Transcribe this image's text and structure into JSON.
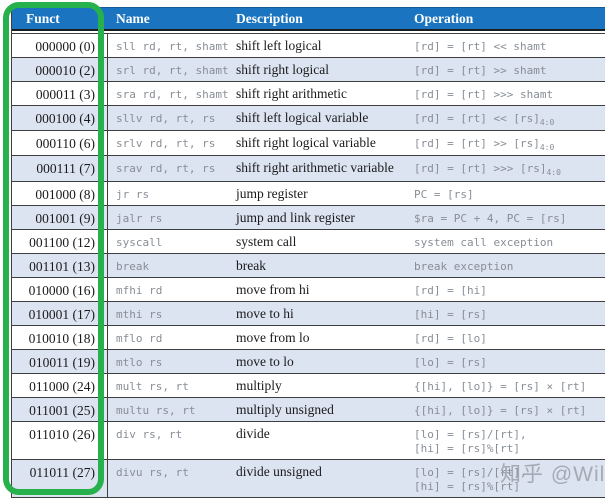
{
  "colors": {
    "header_bg": "#1a74bf",
    "alt_row_bg": "#dce3f1",
    "annotation_green": "#26b14c",
    "row_line": "#3e3e3e",
    "mono_text": "#888e96"
  },
  "annotation": {
    "shape": "green-rounded-rectangle",
    "purpose": "highlights the Funct column"
  },
  "watermark": {
    "text": "知乎 @Wil"
  },
  "table": {
    "columns": {
      "funct": "Funct",
      "name": "Name",
      "description": "Description",
      "operation": "Operation"
    },
    "rows": [
      {
        "funct": "000000 (0)",
        "name": "sll rd, rt, shamt",
        "description": "shift left logical",
        "operation": "[rd] = [rt] << shamt"
      },
      {
        "funct": "000010 (2)",
        "name": "srl rd, rt, shamt",
        "description": "shift right logical",
        "operation": "[rd] = [rt] >> shamt"
      },
      {
        "funct": "000011 (3)",
        "name": "sra rd, rt, shamt",
        "description": "shift right arithmetic",
        "operation": "[rd] = [rt] >>> shamt"
      },
      {
        "funct": "000100 (4)",
        "name": "sllv rd, rt, rs",
        "description": "shift left logical variable",
        "operation": "[rd] = [rt] << [rs]_{4:0}"
      },
      {
        "funct": "000110 (6)",
        "name": "srlv rd, rt, rs",
        "description": "shift right logical variable",
        "operation": "[rd] = [rt] >> [rs]_{4:0}"
      },
      {
        "funct": "000111 (7)",
        "name": "srav rd, rt, rs",
        "description": "shift right arithmetic variable",
        "operation": "[rd] = [rt] >>> [rs]_{4:0}"
      },
      {
        "funct": "001000 (8)",
        "name": "jr rs",
        "description": "jump register",
        "operation": "PC = [rs]"
      },
      {
        "funct": "001001 (9)",
        "name": "jalr rs",
        "description": "jump and link register",
        "operation": "$ra = PC + 4, PC = [rs]"
      },
      {
        "funct": "001100 (12)",
        "name": "syscall",
        "description": "system call",
        "operation": "system call exception"
      },
      {
        "funct": "001101 (13)",
        "name": "break",
        "description": "break",
        "operation": "break exception"
      },
      {
        "funct": "010000 (16)",
        "name": "mfhi rd",
        "description": "move from hi",
        "operation": "[rd] = [hi]"
      },
      {
        "funct": "010001 (17)",
        "name": "mthi rs",
        "description": "move to hi",
        "operation": "[hi] = [rs]"
      },
      {
        "funct": "010010 (18)",
        "name": "mflo rd",
        "description": "move from lo",
        "operation": "[rd] = [lo]"
      },
      {
        "funct": "010011 (19)",
        "name": "mtlo rs",
        "description": "move to lo",
        "operation": "[lo] = [rs]"
      },
      {
        "funct": "011000 (24)",
        "name": "mult rs, rt",
        "description": "multiply",
        "operation": "{[hi], [lo]} = [rs] × [rt]"
      },
      {
        "funct": "011001 (25)",
        "name": "multu rs, rt",
        "description": "multiply unsigned",
        "operation": "{[hi], [lo]} = [rs] × [rt]"
      },
      {
        "funct": "011010 (26)",
        "name": "div rs, rt",
        "description": "divide",
        "operation": "[lo] = [rs]/[rt],\n[hi] = [rs]%[rt]"
      },
      {
        "funct": "011011 (27)",
        "name": "divu rs, rt",
        "description": "divide unsigned",
        "operation": "[lo] = [rs]/[rt],\n[hi] = [rs]%[rt]"
      }
    ]
  }
}
